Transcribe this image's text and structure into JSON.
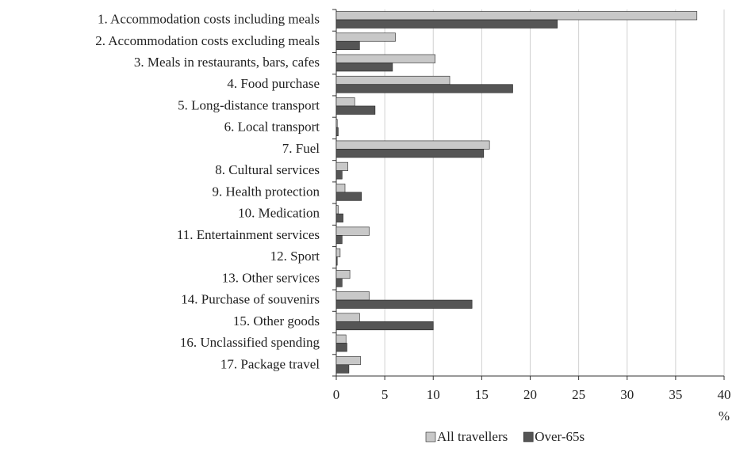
{
  "chart_data": {
    "type": "hbar",
    "categories": [
      "1. Accommodation costs including meals",
      "2. Accommodation costs excluding meals",
      "3. Meals in restaurants, bars, cafes",
      "4. Food purchase",
      "5. Long-distance transport",
      "6. Local transport",
      "7. Fuel",
      "8. Cultural services",
      "9. Health protection",
      "10. Medication",
      "11. Entertainment services",
      "12. Sport",
      "13. Other services",
      "14. Purchase of souvenirs",
      "15. Other goods",
      "16. Unclassified spending",
      "17. Package travel"
    ],
    "series": [
      {
        "name": "All travellers",
        "color": "#c8c8c8",
        "values": [
          37.2,
          6.1,
          10.2,
          11.7,
          1.9,
          0.1,
          15.8,
          1.2,
          0.9,
          0.2,
          3.4,
          0.4,
          1.4,
          3.4,
          2.4,
          1.0,
          2.5
        ]
      },
      {
        "name": "Over-65s",
        "color": "#555555",
        "values": [
          22.8,
          2.4,
          5.8,
          18.2,
          4.0,
          0.2,
          15.2,
          0.6,
          2.6,
          0.7,
          0.6,
          0.1,
          0.6,
          14.0,
          10.0,
          1.1,
          1.3
        ]
      }
    ],
    "xlabel": "%",
    "xlim": [
      0,
      40
    ],
    "xticks": [
      0,
      5,
      10,
      15,
      20,
      25,
      30,
      35,
      40
    ],
    "grid": true,
    "legend": "bottom"
  }
}
